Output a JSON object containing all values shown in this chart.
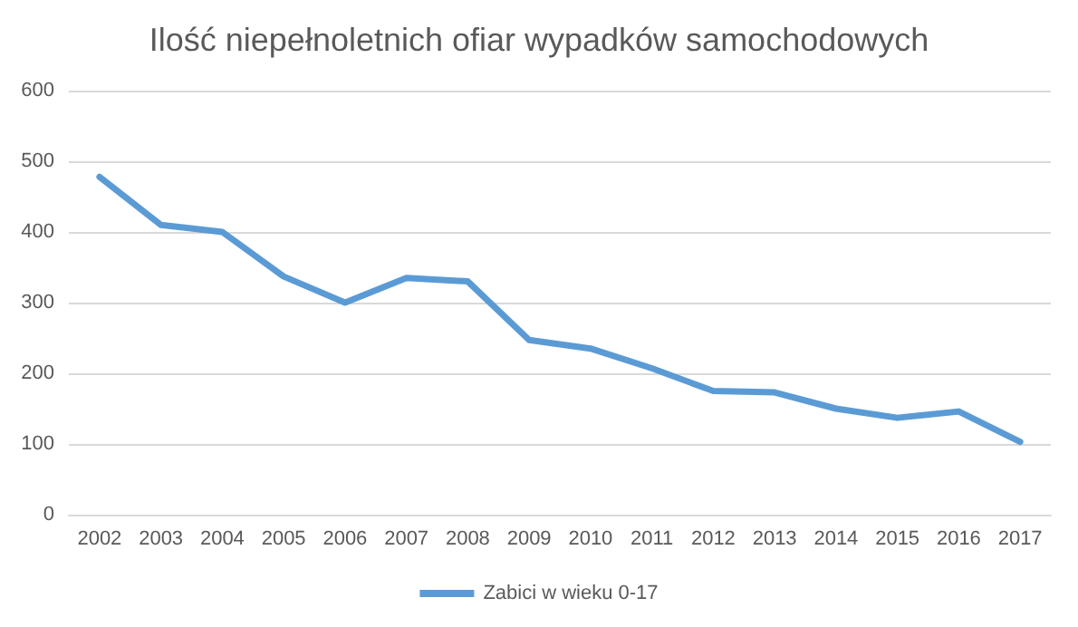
{
  "chart_data": {
    "type": "line",
    "title": "Ilość niepełnoletnich ofiar wypadków samochodowych",
    "categories": [
      "2002",
      "2003",
      "2004",
      "2005",
      "2006",
      "2007",
      "2008",
      "2009",
      "2010",
      "2011",
      "2012",
      "2013",
      "2014",
      "2015",
      "2016",
      "2017"
    ],
    "series": [
      {
        "name": "Zabici w wieku 0-17",
        "color": "#5b9bd5",
        "values": [
          478,
          410,
          400,
          337,
          300,
          335,
          330,
          247,
          235,
          207,
          175,
          173,
          150,
          137,
          146,
          103
        ]
      }
    ],
    "ylim": [
      0,
      600
    ],
    "yticks": [
      0,
      100,
      200,
      300,
      400,
      500,
      600
    ],
    "grid": "y",
    "legend": "bottom",
    "marker": "none",
    "line_style": "solid"
  }
}
